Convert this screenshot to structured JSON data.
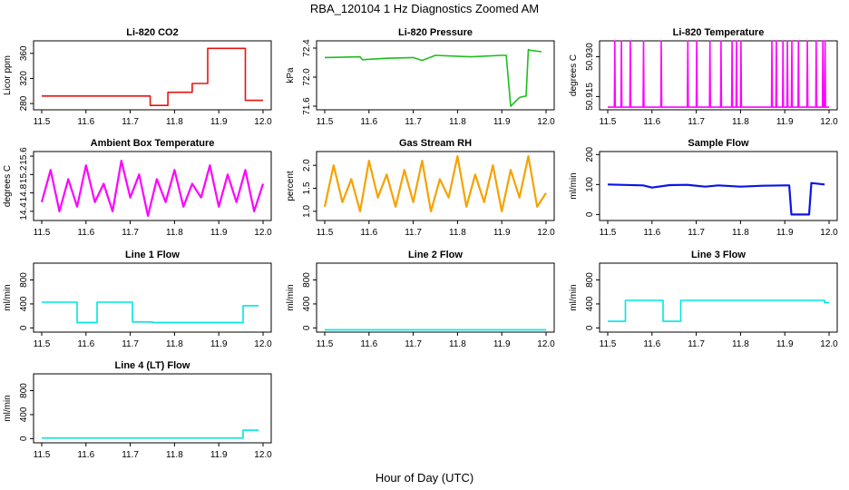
{
  "figure": {
    "title": "RBA_120104  1 Hz Diagnostics Zoomed AM",
    "xlabel": "Hour of Day (UTC)"
  },
  "chart_data": [
    {
      "type": "line",
      "title": "Li-820 CO2",
      "ylabel": "Licor ppm",
      "color": "#e8140f",
      "xlim": [
        11.5,
        12.0
      ],
      "xticks": [
        "11.5",
        "11.6",
        "11.7",
        "11.8",
        "11.9",
        "12.0"
      ],
      "ylim": [
        270,
        380
      ],
      "yticks": [
        "280",
        "320",
        "360"
      ],
      "x": [
        11.5,
        11.745,
        11.745,
        11.785,
        11.785,
        11.84,
        11.84,
        11.875,
        11.875,
        11.96,
        11.96,
        12.0
      ],
      "y": [
        292,
        292,
        277,
        277,
        298,
        298,
        312,
        312,
        368,
        368,
        285,
        285
      ]
    },
    {
      "type": "line",
      "title": "Li-820 Pressure",
      "ylabel": "kPa",
      "color": "#1cbf1c",
      "xlim": [
        11.5,
        12.0
      ],
      "xticks": [
        "11.5",
        "11.6",
        "11.7",
        "11.8",
        "11.9",
        "12.0"
      ],
      "ylim": [
        71.55,
        72.5
      ],
      "yticks": [
        "71.6",
        "72.0",
        "72.4"
      ],
      "x": [
        11.5,
        11.58,
        11.585,
        11.64,
        11.7,
        11.72,
        11.75,
        11.83,
        11.9,
        11.91,
        11.92,
        11.94,
        11.955,
        11.96,
        11.965,
        11.99
      ],
      "y": [
        72.27,
        72.28,
        72.24,
        72.26,
        72.27,
        72.23,
        72.3,
        72.28,
        72.3,
        72.3,
        71.6,
        71.72,
        71.74,
        72.38,
        72.37,
        72.35
      ]
    },
    {
      "type": "line",
      "title": "Li-820 Temperature",
      "ylabel": "degrees C",
      "color": "#ff00ff",
      "xlim": [
        11.5,
        12.0
      ],
      "xticks": [
        "11.5",
        "11.6",
        "11.7",
        "11.8",
        "11.9",
        "12.0"
      ],
      "ylim": [
        50.91,
        50.936
      ],
      "yticks": [
        "50.915",
        "50.930"
      ],
      "x": [
        11.5,
        11.515,
        11.516,
        11.517,
        11.53,
        11.531,
        11.532,
        11.55,
        11.551,
        11.552,
        11.58,
        11.581,
        11.582,
        11.62,
        11.621,
        11.622,
        11.68,
        11.681,
        11.682,
        11.7,
        11.701,
        11.702,
        11.73,
        11.731,
        11.732,
        11.755,
        11.756,
        11.757,
        11.78,
        11.781,
        11.782,
        11.79,
        11.791,
        11.792,
        11.8,
        11.801,
        11.802,
        11.87,
        11.871,
        11.872,
        11.88,
        11.881,
        11.882,
        11.895,
        11.896,
        11.897,
        11.905,
        11.906,
        11.907,
        11.915,
        11.916,
        11.917,
        11.93,
        11.931,
        11.932,
        11.95,
        11.951,
        11.952,
        11.97,
        11.971,
        11.972,
        11.985,
        11.986,
        11.987,
        11.99,
        11.991,
        11.992,
        12.0
      ],
      "y": [
        50.911,
        50.911,
        50.936,
        50.911,
        50.911,
        50.936,
        50.911,
        50.911,
        50.936,
        50.911,
        50.911,
        50.936,
        50.911,
        50.911,
        50.936,
        50.911,
        50.911,
        50.936,
        50.911,
        50.911,
        50.936,
        50.911,
        50.911,
        50.936,
        50.911,
        50.911,
        50.936,
        50.911,
        50.911,
        50.936,
        50.911,
        50.911,
        50.936,
        50.911,
        50.911,
        50.936,
        50.911,
        50.911,
        50.936,
        50.911,
        50.911,
        50.936,
        50.911,
        50.911,
        50.936,
        50.911,
        50.911,
        50.936,
        50.911,
        50.911,
        50.936,
        50.911,
        50.911,
        50.936,
        50.911,
        50.911,
        50.936,
        50.911,
        50.911,
        50.936,
        50.911,
        50.911,
        50.936,
        50.911,
        50.911,
        50.936,
        50.911,
        50.911
      ]
    },
    {
      "type": "line",
      "title": "Ambient Box Temperature",
      "ylabel": "degrees C",
      "color": "#ff00ff",
      "xlim": [
        11.5,
        12.0
      ],
      "xticks": [
        "11.5",
        "11.6",
        "11.7",
        "11.8",
        "11.9",
        "12.0"
      ],
      "ylim": [
        14.2,
        15.7
      ],
      "yticks": [
        "14.4",
        "14.8",
        "15.2",
        "15.6"
      ],
      "x": [
        11.5,
        11.52,
        11.54,
        11.56,
        11.58,
        11.6,
        11.62,
        11.64,
        11.66,
        11.68,
        11.7,
        11.72,
        11.74,
        11.76,
        11.78,
        11.8,
        11.82,
        11.84,
        11.86,
        11.88,
        11.9,
        11.92,
        11.94,
        11.96,
        11.98,
        12.0
      ],
      "y": [
        14.6,
        15.3,
        14.4,
        15.1,
        14.5,
        15.4,
        14.6,
        15.0,
        14.4,
        15.5,
        14.7,
        15.2,
        14.3,
        15.1,
        14.6,
        15.3,
        14.5,
        15.0,
        14.7,
        15.4,
        14.5,
        15.2,
        14.6,
        15.3,
        14.4,
        15.0
      ]
    },
    {
      "type": "line",
      "title": "Gas Stream RH",
      "ylabel": "percent",
      "color": "#f5a200",
      "xlim": [
        11.5,
        12.0
      ],
      "xticks": [
        "11.5",
        "11.6",
        "11.7",
        "11.8",
        "11.9",
        "12.0"
      ],
      "ylim": [
        0.8,
        2.3
      ],
      "yticks": [
        "1.0",
        "1.5",
        "2.0"
      ],
      "x": [
        11.5,
        11.52,
        11.54,
        11.56,
        11.58,
        11.6,
        11.62,
        11.64,
        11.66,
        11.68,
        11.7,
        11.72,
        11.74,
        11.76,
        11.78,
        11.8,
        11.82,
        11.84,
        11.86,
        11.88,
        11.9,
        11.92,
        11.94,
        11.96,
        11.98,
        12.0
      ],
      "y": [
        1.1,
        2.0,
        1.2,
        1.7,
        1.0,
        2.1,
        1.3,
        1.8,
        1.1,
        1.9,
        1.2,
        2.1,
        1.0,
        1.7,
        1.3,
        2.2,
        1.1,
        1.8,
        1.2,
        2.0,
        1.0,
        1.9,
        1.3,
        2.2,
        1.1,
        1.4
      ]
    },
    {
      "type": "line",
      "title": "Sample Flow",
      "ylabel": "ml/min",
      "color": "#0a14e6",
      "xlim": [
        11.5,
        12.0
      ],
      "xticks": [
        "11.5",
        "11.6",
        "11.7",
        "11.8",
        "11.9",
        "12.0"
      ],
      "ylim": [
        -20,
        210
      ],
      "yticks": [
        "0",
        "100",
        "200"
      ],
      "x": [
        11.5,
        11.58,
        11.6,
        11.64,
        11.68,
        11.72,
        11.75,
        11.8,
        11.85,
        11.9,
        11.91,
        11.915,
        11.955,
        11.96,
        11.99
      ],
      "y": [
        100,
        97,
        90,
        98,
        99,
        93,
        97,
        93,
        96,
        97,
        97,
        0,
        0,
        105,
        100
      ]
    },
    {
      "type": "line",
      "title": "Line 1 Flow",
      "ylabel": "ml/min",
      "color": "#00e5e5",
      "xlim": [
        11.5,
        12.0
      ],
      "xticks": [
        "11.5",
        "11.6",
        "11.7",
        "11.8",
        "11.9",
        "12.0"
      ],
      "ylim": [
        -70,
        1080
      ],
      "yticks": [
        "0",
        "400",
        "800"
      ],
      "x": [
        11.5,
        11.58,
        11.58,
        11.625,
        11.625,
        11.705,
        11.705,
        11.75,
        11.75,
        11.955,
        11.955,
        11.99
      ],
      "y": [
        430,
        430,
        90,
        90,
        430,
        430,
        100,
        100,
        90,
        90,
        370,
        370
      ]
    },
    {
      "type": "line",
      "title": "Line 2 Flow",
      "ylabel": "ml/min",
      "color": "#00e5e5",
      "xlim": [
        11.5,
        12.0
      ],
      "xticks": [
        "11.5",
        "11.6",
        "11.7",
        "11.8",
        "11.9",
        "12.0"
      ],
      "ylim": [
        -70,
        1080
      ],
      "yticks": [
        "0",
        "400",
        "800"
      ],
      "x": [
        11.5,
        12.0
      ],
      "y": [
        -30,
        -30
      ]
    },
    {
      "type": "line",
      "title": "Line 3 Flow",
      "ylabel": "ml/min",
      "color": "#00e5e5",
      "xlim": [
        11.5,
        12.0
      ],
      "xticks": [
        "11.5",
        "11.6",
        "11.7",
        "11.8",
        "11.9",
        "12.0"
      ],
      "ylim": [
        -70,
        1080
      ],
      "yticks": [
        "0",
        "400",
        "800"
      ],
      "x": [
        11.5,
        11.54,
        11.54,
        11.625,
        11.625,
        11.665,
        11.665,
        11.99,
        11.99,
        12.0
      ],
      "y": [
        110,
        110,
        460,
        460,
        110,
        110,
        460,
        460,
        420,
        420
      ]
    },
    {
      "type": "line",
      "title": "Line 4 (LT) Flow",
      "ylabel": "ml/min",
      "color": "#00e5e5",
      "xlim": [
        11.5,
        12.0
      ],
      "xticks": [
        "11.5",
        "11.6",
        "11.7",
        "11.8",
        "11.9",
        "12.0"
      ],
      "ylim": [
        -70,
        1080
      ],
      "yticks": [
        "0",
        "400",
        "800"
      ],
      "x": [
        11.5,
        11.955,
        11.955,
        11.99
      ],
      "y": [
        10,
        10,
        140,
        140
      ]
    }
  ]
}
